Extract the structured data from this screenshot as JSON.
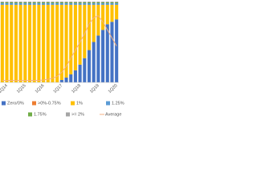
{
  "chart_data": {
    "type": "bar",
    "stacked": true,
    "categories": [
      null,
      "1Q14",
      null,
      null,
      null,
      "1Q15",
      null,
      null,
      null,
      "1Q16",
      null,
      null,
      null,
      "1Q17",
      null,
      null,
      null,
      "1Q18",
      null,
      null,
      null,
      "1Q19",
      null,
      null,
      null,
      "1Q20"
    ],
    "ylim": [
      0,
      100
    ],
    "y2lim": [
      0,
      2
    ],
    "grid": false,
    "series": [
      {
        "name": "Zero/0%",
        "color": "#4472c4",
        "values": [
          0,
          0,
          0,
          0,
          0,
          0,
          0,
          0,
          0,
          0,
          0,
          0,
          0,
          3,
          6,
          10,
          15,
          22,
          30,
          40,
          50,
          58,
          65,
          72,
          75,
          78
        ]
      },
      {
        "name": ">0%-0.75%",
        "color": "#ed7d31",
        "values": [
          0,
          0,
          0,
          0,
          0,
          0,
          0,
          0,
          0,
          0,
          0,
          0,
          0,
          0,
          0,
          0,
          0,
          0,
          0,
          0,
          0,
          0,
          0,
          0,
          0,
          0
        ]
      },
      {
        "name": "1%",
        "color": "#ffc000",
        "values": [
          96,
          96,
          96,
          96,
          96,
          96,
          96,
          96,
          96,
          96,
          96,
          96,
          96,
          93,
          90,
          86,
          81,
          74,
          66,
          56,
          46,
          38,
          31,
          24,
          21,
          18
        ]
      },
      {
        "name": "1.25%",
        "color": "#5b9bd5",
        "values": [
          2,
          2,
          2,
          2,
          2,
          2,
          2,
          2,
          2,
          2,
          2,
          2,
          2,
          2,
          2,
          2,
          2,
          2,
          2,
          2,
          2,
          2,
          2,
          2,
          2,
          2
        ]
      },
      {
        "name": "1.75%",
        "color": "#70ad47",
        "values": [
          1,
          1,
          1,
          1,
          1,
          1,
          1,
          1,
          1,
          1,
          1,
          1,
          1,
          1,
          1,
          1,
          1,
          1,
          1,
          1,
          1,
          1,
          1,
          1,
          1,
          1
        ]
      },
      {
        "name": ">= 2%",
        "color": "#a5a5a5",
        "values": [
          1,
          1,
          1,
          1,
          1,
          1,
          1,
          1,
          1,
          1,
          1,
          1,
          1,
          1,
          1,
          1,
          1,
          1,
          1,
          1,
          1,
          1,
          1,
          1,
          1,
          1
        ]
      },
      {
        "name": "Average",
        "type": "line",
        "axis": "y2",
        "color": "#f4b183",
        "values": [
          0.05,
          0.05,
          0.05,
          0.05,
          0.05,
          0.05,
          0.05,
          0.05,
          0.05,
          0.06,
          0.08,
          0.1,
          0.15,
          0.25,
          0.4,
          0.6,
          0.8,
          1.0,
          1.2,
          1.45,
          1.6,
          1.65,
          1.5,
          1.3,
          1.1,
          0.9
        ]
      }
    ]
  }
}
